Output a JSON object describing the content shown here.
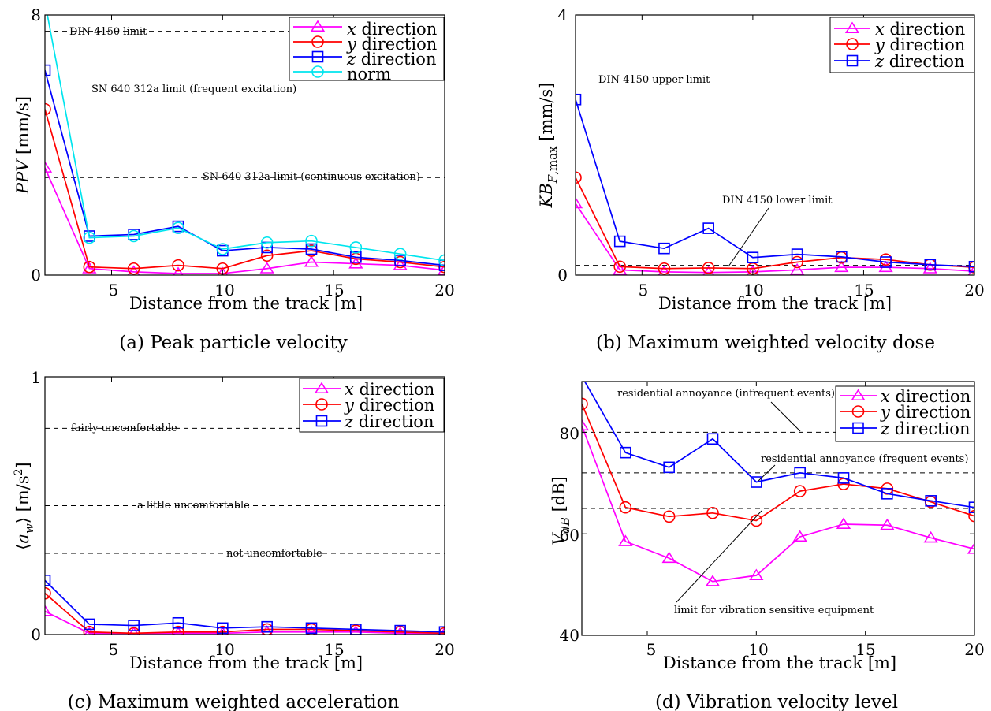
{
  "colors": {
    "x": "#ff00ff",
    "y": "#ff0000",
    "z": "#0000ff",
    "norm": "#00e5ee",
    "ref": "#000000"
  },
  "chart_data": [
    {
      "type": "line",
      "caption": "(a) Peak particle velocity",
      "xlabel": "Distance from the track [m]",
      "ylabel": "PPV [mm/s]",
      "xlim": [
        2,
        20
      ],
      "ylim": [
        0,
        8
      ],
      "xticks": [
        5,
        10,
        15,
        20
      ],
      "yticks": [
        0,
        8
      ],
      "grid": false,
      "legend_position": "top-right",
      "x": [
        2,
        4,
        6,
        8,
        10,
        12,
        14,
        16,
        18,
        20
      ],
      "series": [
        {
          "name": "x direction",
          "key": "x",
          "marker": "triangle",
          "values": [
            3.3,
            0.2,
            0.1,
            0.05,
            0.05,
            0.2,
            0.4,
            0.35,
            0.3,
            0.15
          ]
        },
        {
          "name": "y direction",
          "key": "y",
          "marker": "circle",
          "values": [
            5.1,
            0.25,
            0.2,
            0.3,
            0.2,
            0.6,
            0.75,
            0.5,
            0.4,
            0.25
          ]
        },
        {
          "name": "z direction",
          "key": "z",
          "marker": "square",
          "values": [
            6.3,
            1.2,
            1.25,
            1.5,
            0.75,
            0.85,
            0.8,
            0.55,
            0.45,
            0.3
          ]
        },
        {
          "name": "norm",
          "key": "norm",
          "marker": "circle",
          "values": [
            8.4,
            1.15,
            1.2,
            1.45,
            0.8,
            1.0,
            1.05,
            0.85,
            0.65,
            0.45
          ]
        }
      ],
      "reference_lines": [
        {
          "label": "DIN 4150 limit",
          "y": 7.5
        },
        {
          "label": "SN 640 312a limit (frequent excitation)",
          "y": 6.0
        },
        {
          "label": "SN 640 312a limit (continuous excitation)",
          "y": 3.0
        }
      ]
    },
    {
      "type": "line",
      "caption": "(b) Maximum weighted velocity dose",
      "xlabel": "Distance from the track [m]",
      "ylabel": "KB_F,max [mm/s]",
      "xlim": [
        2,
        20
      ],
      "ylim": [
        0,
        4
      ],
      "xticks": [
        5,
        10,
        15,
        20
      ],
      "yticks": [
        0,
        4
      ],
      "grid": false,
      "legend_position": "top-right",
      "x": [
        2,
        4,
        6,
        8,
        10,
        12,
        14,
        16,
        18,
        20
      ],
      "series": [
        {
          "name": "x direction",
          "key": "x",
          "marker": "triangle",
          "values": [
            1.1,
            0.08,
            0.05,
            0.04,
            0.05,
            0.08,
            0.12,
            0.12,
            0.1,
            0.06
          ]
        },
        {
          "name": "y direction",
          "key": "y",
          "marker": "circle",
          "values": [
            1.5,
            0.13,
            0.1,
            0.11,
            0.1,
            0.2,
            0.27,
            0.24,
            0.16,
            0.12
          ]
        },
        {
          "name": "z direction",
          "key": "z",
          "marker": "square",
          "values": [
            2.7,
            0.52,
            0.41,
            0.72,
            0.27,
            0.32,
            0.28,
            0.2,
            0.16,
            0.13
          ]
        }
      ],
      "reference_lines": [
        {
          "label": "DIN 4150 upper limit",
          "y": 3.0
        },
        {
          "label": "DIN 4150 lower limit",
          "y": 0.15
        }
      ]
    },
    {
      "type": "line",
      "caption": "(c) Maximum weighted acceleration",
      "xlabel": "Distance from the track [m]",
      "ylabel": "⟨a_w⟩ [m/s²]",
      "xlim": [
        2,
        20
      ],
      "ylim": [
        0,
        1
      ],
      "xticks": [
        5,
        10,
        15,
        20
      ],
      "yticks": [
        0,
        1
      ],
      "grid": false,
      "legend_position": "top-right",
      "x": [
        2,
        4,
        6,
        8,
        10,
        12,
        14,
        16,
        18,
        20
      ],
      "series": [
        {
          "name": "x direction",
          "key": "x",
          "marker": "triangle",
          "values": [
            0.09,
            0.005,
            0.005,
            0.005,
            0.005,
            0.01,
            0.01,
            0.01,
            0.005,
            0.005
          ]
        },
        {
          "name": "y direction",
          "key": "y",
          "marker": "circle",
          "values": [
            0.16,
            0.01,
            0.005,
            0.01,
            0.01,
            0.02,
            0.02,
            0.015,
            0.01,
            0.005
          ]
        },
        {
          "name": "z direction",
          "key": "z",
          "marker": "square",
          "values": [
            0.21,
            0.04,
            0.035,
            0.045,
            0.025,
            0.03,
            0.025,
            0.02,
            0.015,
            0.01
          ]
        }
      ],
      "reference_lines": [
        {
          "label": "fairly uncomfortable",
          "y": 0.8
        },
        {
          "label": "a little uncomfortable",
          "y": 0.5
        },
        {
          "label": "not uncomfortable",
          "y": 0.315
        }
      ]
    },
    {
      "type": "line",
      "caption": "(d) Vibration velocity level",
      "xlabel": "Distance from the track [m]",
      "ylabel": "V_dB [dB]",
      "xlim": [
        2,
        20
      ],
      "ylim": [
        40,
        90
      ],
      "xticks": [
        5,
        10,
        15,
        20
      ],
      "yticks": [
        40,
        60,
        80
      ],
      "grid": false,
      "legend_position": "top-right",
      "x": [
        2,
        4,
        6,
        8,
        10,
        12,
        14,
        16,
        18,
        20
      ],
      "series": [
        {
          "name": "x direction",
          "key": "x",
          "marker": "triangle",
          "values": [
            81.3,
            58.5,
            55.2,
            50.6,
            51.8,
            59.4,
            61.9,
            61.7,
            59.2,
            57.0
          ]
        },
        {
          "name": "y direction",
          "key": "y",
          "marker": "circle",
          "values": [
            85.6,
            65.2,
            63.4,
            64.1,
            62.6,
            68.4,
            69.8,
            68.9,
            66.3,
            63.5
          ]
        },
        {
          "name": "z direction",
          "key": "z",
          "marker": "square",
          "values": [
            91.0,
            76.0,
            73.1,
            78.7,
            70.2,
            72.0,
            71.0,
            67.9,
            66.5,
            65.2
          ]
        }
      ],
      "reference_lines": [
        {
          "label": "residential annoyance (infrequent events)",
          "y": 80
        },
        {
          "label": "residential annoyance (frequent events)",
          "y": 72
        },
        {
          "label": "limit for vibration sensitive equipment",
          "y": 65
        }
      ]
    }
  ]
}
